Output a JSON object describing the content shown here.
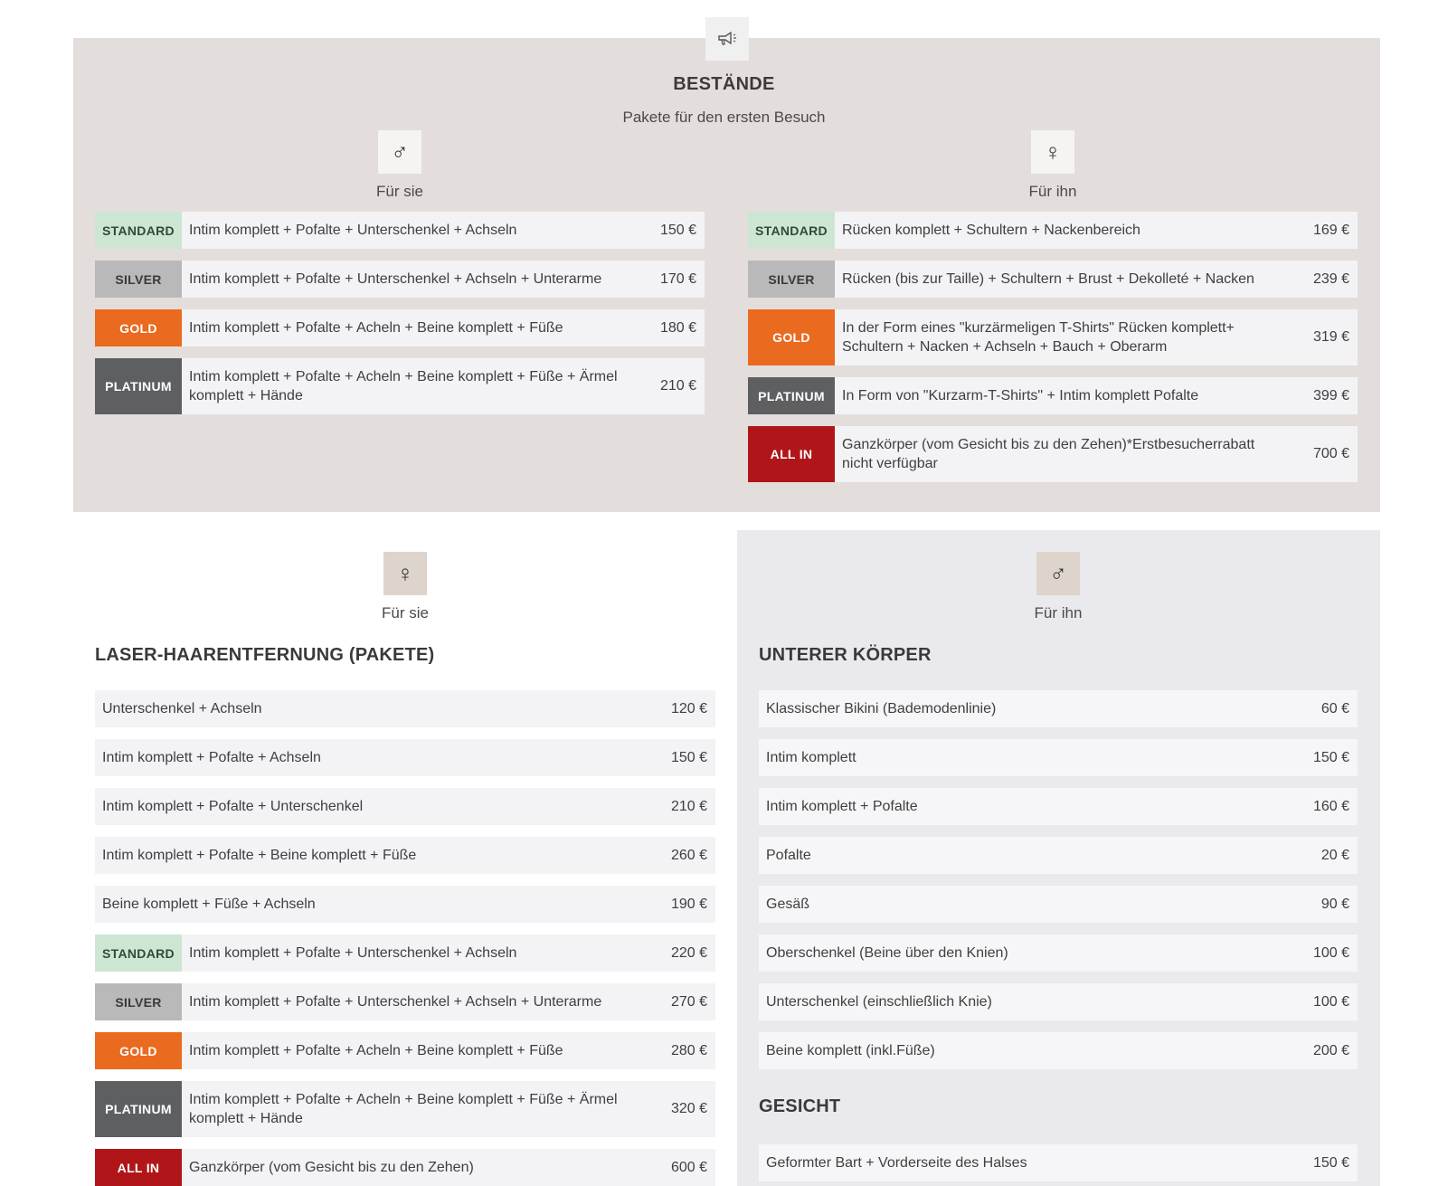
{
  "header": {
    "icon": "megaphone-icon",
    "title": "BESTÄNDE",
    "subtitle": "Pakete für den ersten Besuch"
  },
  "top_left": {
    "icon": "male-symbol-icon",
    "icon_glyph": "♂",
    "label": "Für sie",
    "rows": [
      {
        "tag": "STANDARD",
        "desc": "Intim komplett + Pofalte + Unterschenkel + Achseln",
        "price": "150 €"
      },
      {
        "tag": "SILVER",
        "desc": "Intim komplett + Pofalte + Unterschenkel + Achseln + Unterarme",
        "price": "170 €"
      },
      {
        "tag": "GOLD",
        "desc": "Intim komplett + Pofalte + Acheln + Beine komplett + Füße",
        "price": "180 €"
      },
      {
        "tag": "PLATINUM",
        "desc": "Intim komplett + Pofalte + Acheln + Beine komplett + Füße + Ärmel komplett + Hände",
        "price": "210 €"
      }
    ]
  },
  "top_right": {
    "icon": "female-symbol-icon",
    "icon_glyph": "♀",
    "label": "Für ihn",
    "rows": [
      {
        "tag": "STANDARD",
        "desc": "Rücken komplett + Schultern + Nackenbereich",
        "price": "169 €"
      },
      {
        "tag": "SILVER",
        "desc": "Rücken (bis zur Taille) + Schultern + Brust + Dekolleté + Nacken",
        "price": "239 €"
      },
      {
        "tag": "GOLD",
        "desc": "In der Form eines \"kurzärmeligen T-Shirts\" Rücken komplett+ Schultern + Nacken + Achseln + Bauch + Oberarm",
        "price": "319 €"
      },
      {
        "tag": "PLATINUM",
        "desc": "In Form von \"Kurzarm-T-Shirts\" + Intim komplett Pofalte",
        "price": "399 €"
      },
      {
        "tag": "ALL IN",
        "desc": "Ganzkörper (vom Gesicht bis zu den Zehen)*Erstbesucherrabatt nicht verfügbar",
        "price": "700 €"
      }
    ]
  },
  "bottom_left": {
    "icon": "female-symbol-icon",
    "icon_glyph": "♀",
    "label": "Für sie",
    "section_title": "LASER-HAARENTFERNUNG (PAKETE)",
    "rows": [
      {
        "tag": "",
        "desc": "Unterschenkel + Achseln",
        "price": "120 €"
      },
      {
        "tag": "",
        "desc": "Intim komplett + Pofalte + Achseln",
        "price": "150 €"
      },
      {
        "tag": "",
        "desc": "Intim komplett + Pofalte + Unterschenkel",
        "price": "210 €"
      },
      {
        "tag": "",
        "desc": "Intim komplett + Pofalte + Beine komplett + Füße",
        "price": "260 €"
      },
      {
        "tag": "",
        "desc": "Beine komplett + Füße + Achseln",
        "price": "190 €"
      },
      {
        "tag": "STANDARD",
        "desc": "Intim komplett + Pofalte + Unterschenkel + Achseln",
        "price": "220 €"
      },
      {
        "tag": "SILVER",
        "desc": "Intim komplett + Pofalte + Unterschenkel + Achseln + Unterarme",
        "price": "270 €"
      },
      {
        "tag": "GOLD",
        "desc": "Intim komplett + Pofalte + Acheln + Beine komplett + Füße",
        "price": "280 €"
      },
      {
        "tag": "PLATINUM",
        "desc": "Intim komplett + Pofalte + Acheln + Beine komplett + Füße + Ärmel komplett + Hände",
        "price": "320 €"
      },
      {
        "tag": "ALL IN",
        "desc": "Ganzkörper (vom Gesicht bis zu den Zehen)",
        "price": "600 €"
      }
    ]
  },
  "bottom_right": {
    "icon": "male-symbol-icon",
    "icon_glyph": "♂",
    "label": "Für ihn",
    "section_title": "UNTERER KÖRPER",
    "rows": [
      {
        "desc": "Klassischer Bikini (Bademodenlinie)",
        "price": "60 €"
      },
      {
        "desc": "Intim komplett",
        "price": "150 €"
      },
      {
        "desc": "Intim komplett + Pofalte",
        "price": "160 €"
      },
      {
        "desc": "Pofalte",
        "price": "20 €"
      },
      {
        "desc": "Gesäß",
        "price": "90 €"
      },
      {
        "desc": "Oberschenkel (Beine über den Knien)",
        "price": "100 €"
      },
      {
        "desc": "Unterschenkel (einschließlich Knie)",
        "price": "100 €"
      },
      {
        "desc": "Beine komplett (inkl.Füße)",
        "price": "200 €"
      }
    ],
    "section2_title": "GESICHT",
    "rows2": [
      {
        "desc": "Geformter Bart + Vorderseite des Halses",
        "price": "150 €"
      }
    ]
  },
  "colors": {
    "top_panel_bg": "#e3dedb",
    "bottom_right_bg": "#eae9ed",
    "row_bg": "#f3f2f5",
    "standard": "#cde6d4",
    "silver": "#b9b9b9",
    "gold": "#ea6a1f",
    "platinum": "#5d5f61",
    "allin": "#b01619"
  }
}
